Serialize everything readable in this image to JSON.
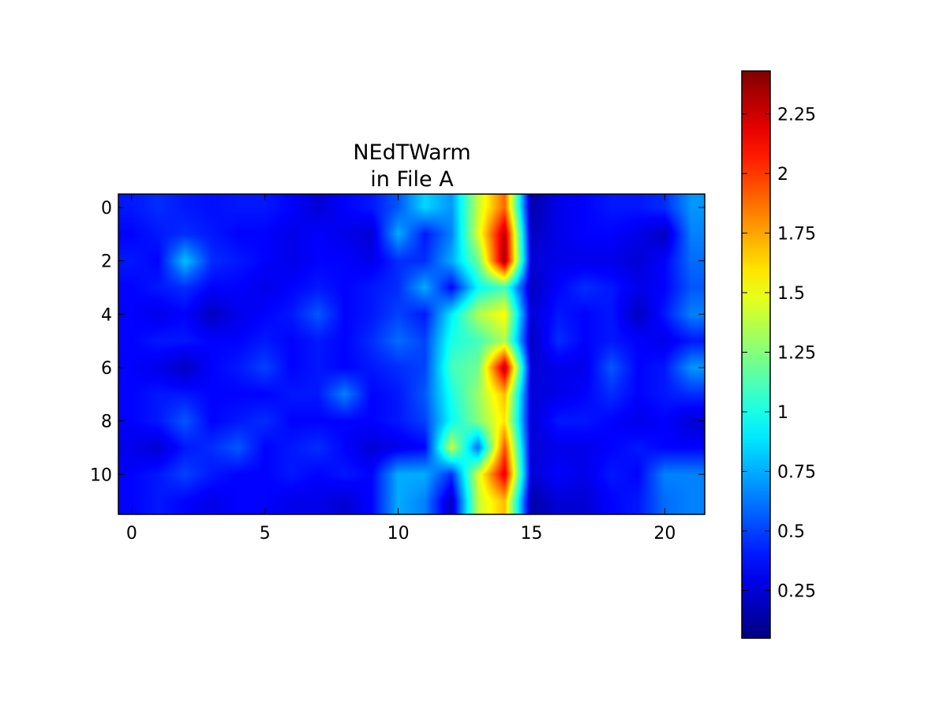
{
  "chart_data": {
    "type": "heatmap",
    "title": [
      "NEdTWarm",
      "in File A"
    ],
    "x_ticks": [
      "0",
      "5",
      "10",
      "15",
      "20"
    ],
    "x_tick_values": [
      0,
      5,
      10,
      15,
      20
    ],
    "y_ticks": [
      "0",
      "2",
      "4",
      "6",
      "8",
      "10"
    ],
    "y_tick_values": [
      0,
      2,
      4,
      6,
      8,
      10
    ],
    "xlim": [
      -0.5,
      21.5
    ],
    "ylim": [
      11.5,
      -0.5
    ],
    "colormap": "jet",
    "interpolation": "bilinear",
    "colorbar": {
      "min": 0.05,
      "max": 2.43,
      "ticks": [
        "0.25",
        "0.5",
        "0.75",
        "1",
        "1.25",
        "1.5",
        "1.75",
        "2",
        "2.25"
      ],
      "tick_values": [
        0.25,
        0.5,
        0.75,
        1.0,
        1.25,
        1.5,
        1.75,
        2.0,
        2.25
      ]
    },
    "rows": [
      [
        0.4,
        0.45,
        0.4,
        0.38,
        0.4,
        0.4,
        0.35,
        0.25,
        0.35,
        0.4,
        0.55,
        0.85,
        0.7,
        1.4,
        1.9,
        0.15,
        0.3,
        0.35,
        0.4,
        0.4,
        0.45,
        0.7
      ],
      [
        0.35,
        0.4,
        0.45,
        0.4,
        0.35,
        0.35,
        0.3,
        0.35,
        0.3,
        0.25,
        0.75,
        0.4,
        0.65,
        1.45,
        2.3,
        0.2,
        0.3,
        0.35,
        0.35,
        0.3,
        0.2,
        0.65
      ],
      [
        0.4,
        0.35,
        0.8,
        0.45,
        0.4,
        0.35,
        0.3,
        0.35,
        0.35,
        0.3,
        0.45,
        0.45,
        0.75,
        1.2,
        2.35,
        0.25,
        0.3,
        0.3,
        0.3,
        0.25,
        0.35,
        0.6
      ],
      [
        0.35,
        0.4,
        0.45,
        0.35,
        0.35,
        0.3,
        0.35,
        0.4,
        0.35,
        0.4,
        0.45,
        0.75,
        0.35,
        0.95,
        1.1,
        0.2,
        0.35,
        0.45,
        0.4,
        0.3,
        0.35,
        0.55
      ],
      [
        0.35,
        0.3,
        0.35,
        0.2,
        0.3,
        0.35,
        0.4,
        0.55,
        0.35,
        0.4,
        0.5,
        0.4,
        0.9,
        1.35,
        1.55,
        0.25,
        0.4,
        0.35,
        0.4,
        0.2,
        0.4,
        0.65
      ],
      [
        0.35,
        0.4,
        0.4,
        0.35,
        0.35,
        0.4,
        0.35,
        0.4,
        0.35,
        0.45,
        0.6,
        0.5,
        1.0,
        1.1,
        1.35,
        0.2,
        0.45,
        0.35,
        0.4,
        0.35,
        0.3,
        0.4
      ],
      [
        0.35,
        0.3,
        0.2,
        0.35,
        0.4,
        0.5,
        0.35,
        0.4,
        0.35,
        0.4,
        0.45,
        0.5,
        1.1,
        1.2,
        2.3,
        0.25,
        0.3,
        0.3,
        0.55,
        0.35,
        0.4,
        0.7
      ],
      [
        0.35,
        0.4,
        0.4,
        0.35,
        0.35,
        0.35,
        0.4,
        0.4,
        0.65,
        0.35,
        0.4,
        0.55,
        1.0,
        1.3,
        1.7,
        0.25,
        0.3,
        0.35,
        0.45,
        0.35,
        0.4,
        0.45
      ],
      [
        0.35,
        0.4,
        0.55,
        0.35,
        0.4,
        0.45,
        0.35,
        0.35,
        0.35,
        0.35,
        0.4,
        0.5,
        0.95,
        1.25,
        1.6,
        0.25,
        0.4,
        0.4,
        0.35,
        0.3,
        0.35,
        0.25
      ],
      [
        0.3,
        0.25,
        0.4,
        0.45,
        0.55,
        0.35,
        0.4,
        0.45,
        0.35,
        0.25,
        0.3,
        0.35,
        1.4,
        0.6,
        1.95,
        0.25,
        0.3,
        0.3,
        0.35,
        0.4,
        0.35,
        0.35
      ],
      [
        0.35,
        0.4,
        0.5,
        0.4,
        0.35,
        0.35,
        0.4,
        0.35,
        0.4,
        0.35,
        0.75,
        0.75,
        0.45,
        1.45,
        2.2,
        0.25,
        0.35,
        0.3,
        0.4,
        0.35,
        0.65,
        0.65
      ],
      [
        0.35,
        0.4,
        0.35,
        0.3,
        0.35,
        0.35,
        0.3,
        0.3,
        0.25,
        0.35,
        0.75,
        0.65,
        0.2,
        1.4,
        1.7,
        0.15,
        0.25,
        0.25,
        0.35,
        0.4,
        0.6,
        0.65
      ]
    ]
  }
}
